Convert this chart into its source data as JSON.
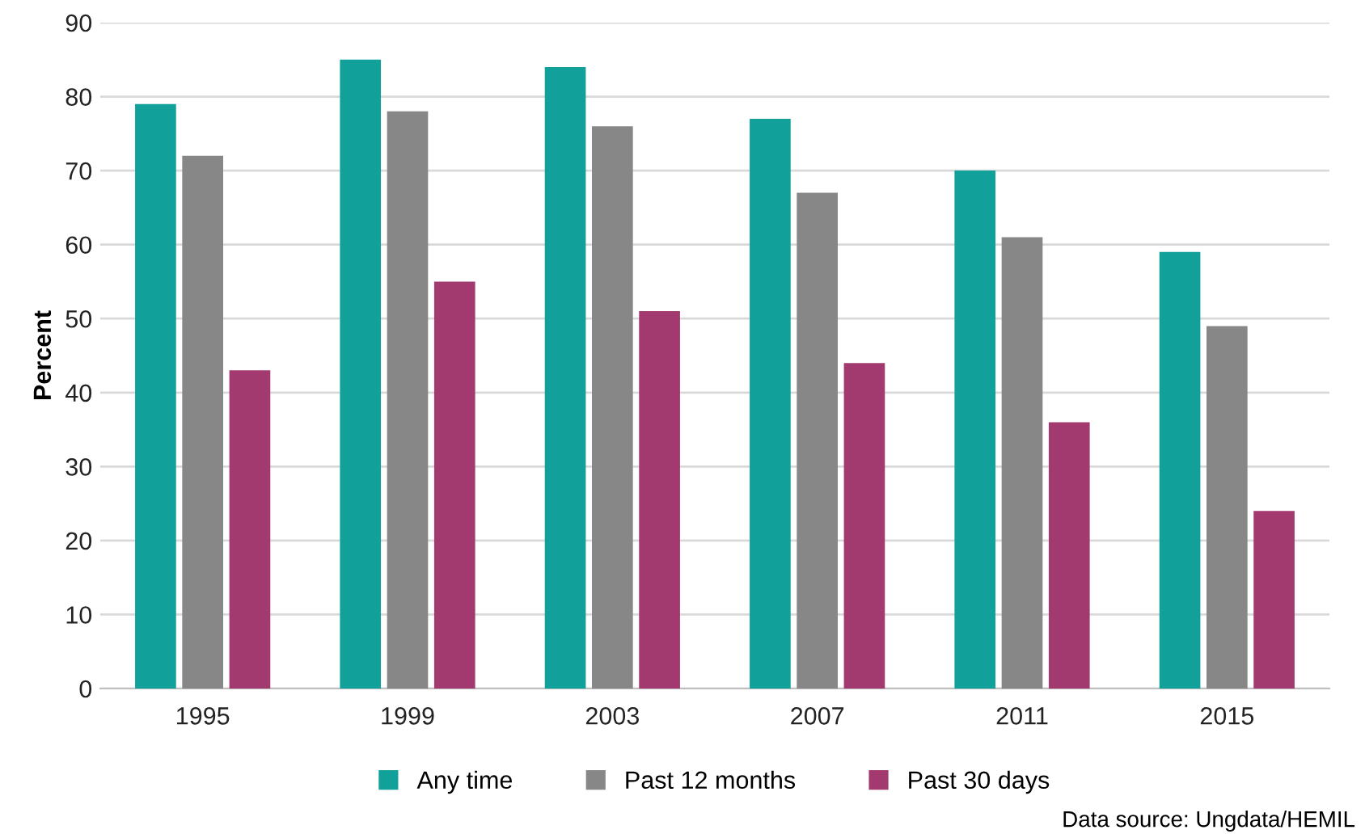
{
  "chart_data": {
    "type": "bar",
    "ylabel": "Percent",
    "categories": [
      "1995",
      "1999",
      "2003",
      "2007",
      "2011",
      "2015"
    ],
    "series": [
      {
        "name": "Any time",
        "color": "#12a19a",
        "values": [
          79,
          85,
          84,
          77,
          70,
          59
        ]
      },
      {
        "name": "Past 12 months",
        "color": "#878787",
        "values": [
          72,
          78,
          76,
          67,
          61,
          49
        ]
      },
      {
        "name": "Past 30 days",
        "color": "#a2396f",
        "values": [
          43,
          55,
          51,
          44,
          36,
          24
        ]
      }
    ],
    "ylim": [
      0,
      90
    ],
    "yticks": [
      0,
      10,
      20,
      30,
      40,
      50,
      60,
      70,
      80,
      90
    ],
    "grid": "y",
    "legend": "bottom",
    "annotations": [
      "Data source: Ungdata/HEMIL"
    ]
  }
}
